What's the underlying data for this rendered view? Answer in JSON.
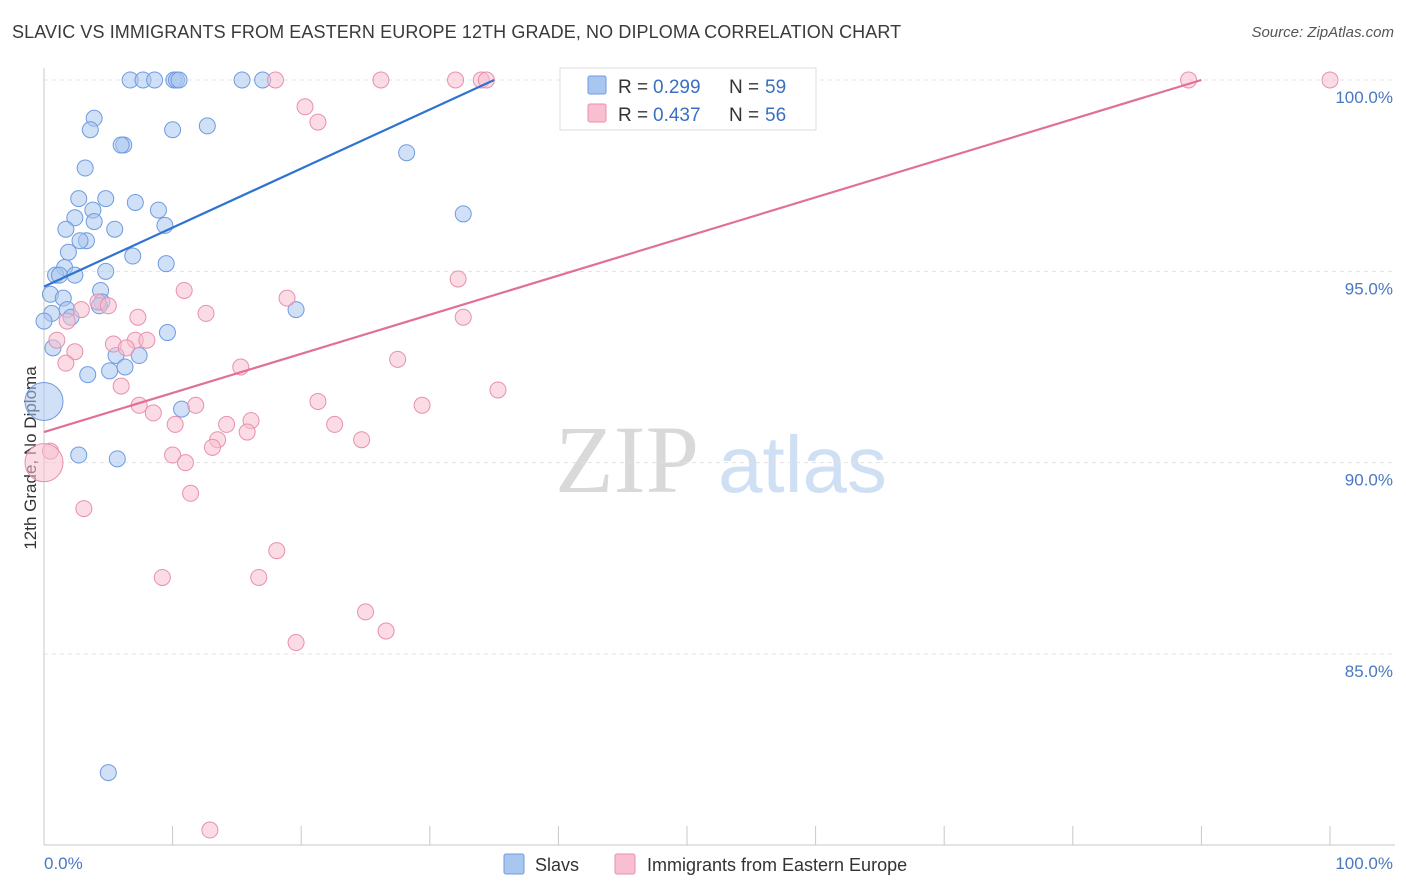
{
  "header": {
    "title": "SLAVIC VS IMMIGRANTS FROM EASTERN EUROPE 12TH GRADE, NO DIPLOMA CORRELATION CHART",
    "source": "Source: ZipAtlas.com"
  },
  "watermark": {
    "zip": "ZIP",
    "atlas": "atlas"
  },
  "legend": {
    "r_label": "R =",
    "n_label": "N =",
    "rows": [
      {
        "name": "Slavs",
        "r": "0.299",
        "n": "59",
        "fill": "#a9c6ef",
        "stroke": "#6f9be0"
      },
      {
        "name": "Immigrants from Eastern Europe",
        "r": "0.437",
        "n": "56",
        "fill": "#f7bfd0",
        "stroke": "#e98fae"
      }
    ]
  },
  "chart_data": {
    "type": "scatter",
    "title": "SLAVIC VS IMMIGRANTS FROM EASTERN EUROPE 12TH GRADE, NO DIPLOMA CORRELATION CHART",
    "xlabel": "",
    "ylabel": "12th Grade, No Diploma",
    "xlim": [
      0,
      100
    ],
    "ylim": [
      80.2,
      100.4
    ],
    "x_tick_labels": [
      {
        "value": 0,
        "label": "0.0%"
      },
      {
        "value": 100,
        "label": "100.0%"
      }
    ],
    "y_tick_labels": [
      {
        "value": 100,
        "label": "100.0%"
      },
      {
        "value": 95,
        "label": "95.0%"
      },
      {
        "value": 90,
        "label": "90.0%"
      },
      {
        "value": 85,
        "label": "85.0%"
      }
    ],
    "y_gridlines": [
      100,
      95,
      90,
      85
    ],
    "series": [
      {
        "name": "Slavs",
        "color": "#6f9be0",
        "fill": "#a9c6ef",
        "trend": {
          "x": [
            0,
            35
          ],
          "y": [
            94.6,
            100.0
          ]
        },
        "points": [
          [
            6.7,
            100
          ],
          [
            7.7,
            100
          ],
          [
            8.6,
            100
          ],
          [
            10.1,
            100
          ],
          [
            10.3,
            100
          ],
          [
            10.5,
            100
          ],
          [
            15.4,
            100
          ],
          [
            17.0,
            100
          ],
          [
            3.9,
            99.0
          ],
          [
            3.6,
            98.7
          ],
          [
            10.0,
            98.7
          ],
          [
            12.7,
            98.8
          ],
          [
            6.2,
            98.3
          ],
          [
            6.0,
            98.3
          ],
          [
            28.2,
            98.1
          ],
          [
            3.2,
            97.7
          ],
          [
            2.7,
            96.9
          ],
          [
            4.8,
            96.9
          ],
          [
            7.1,
            96.8
          ],
          [
            3.8,
            96.6
          ],
          [
            8.9,
            96.6
          ],
          [
            2.4,
            96.4
          ],
          [
            3.9,
            96.3
          ],
          [
            1.7,
            96.1
          ],
          [
            5.5,
            96.1
          ],
          [
            9.4,
            96.2
          ],
          [
            32.6,
            96.5
          ],
          [
            3.3,
            95.8
          ],
          [
            2.8,
            95.8
          ],
          [
            1.9,
            95.5
          ],
          [
            6.9,
            95.4
          ],
          [
            9.5,
            95.2
          ],
          [
            1.6,
            95.1
          ],
          [
            0.9,
            94.9
          ],
          [
            1.2,
            94.9
          ],
          [
            2.4,
            94.9
          ],
          [
            4.8,
            95.0
          ],
          [
            0.5,
            94.4
          ],
          [
            1.5,
            94.3
          ],
          [
            4.4,
            94.5
          ],
          [
            4.5,
            94.2
          ],
          [
            4.3,
            94.1
          ],
          [
            1.8,
            94.0
          ],
          [
            0.6,
            93.9
          ],
          [
            2.1,
            93.8
          ],
          [
            0.0,
            93.7
          ],
          [
            19.6,
            94.0
          ],
          [
            9.6,
            93.4
          ],
          [
            0.7,
            93.0
          ],
          [
            5.6,
            92.8
          ],
          [
            7.4,
            92.8
          ],
          [
            6.3,
            92.5
          ],
          [
            5.1,
            92.4
          ],
          [
            3.4,
            92.3
          ],
          [
            10.7,
            91.4
          ],
          [
            0.0,
            91.6
          ],
          [
            2.7,
            90.2
          ],
          [
            5.7,
            90.1
          ],
          [
            5.0,
            81.9
          ]
        ],
        "big_point_index": 55
      },
      {
        "name": "Immigrants from Eastern Europe",
        "color": "#e98fae",
        "fill": "#f7bfd0",
        "trend": {
          "x": [
            0,
            90
          ],
          "y": [
            90.8,
            100.0
          ]
        },
        "points": [
          [
            18.0,
            100
          ],
          [
            26.2,
            100
          ],
          [
            32.0,
            100
          ],
          [
            34.0,
            100
          ],
          [
            34.4,
            100
          ],
          [
            89.0,
            100
          ],
          [
            100,
            100
          ],
          [
            20.3,
            99.3
          ],
          [
            21.3,
            98.9
          ],
          [
            32.2,
            94.8
          ],
          [
            10.9,
            94.5
          ],
          [
            18.9,
            94.3
          ],
          [
            4.2,
            94.2
          ],
          [
            5.0,
            94.1
          ],
          [
            2.9,
            94.0
          ],
          [
            12.6,
            93.9
          ],
          [
            1.8,
            93.7
          ],
          [
            7.3,
            93.8
          ],
          [
            32.6,
            93.8
          ],
          [
            7.1,
            93.2
          ],
          [
            8.0,
            93.2
          ],
          [
            1.0,
            93.2
          ],
          [
            5.4,
            93.1
          ],
          [
            6.4,
            93.0
          ],
          [
            2.4,
            92.9
          ],
          [
            1.7,
            92.6
          ],
          [
            27.5,
            92.7
          ],
          [
            15.3,
            92.5
          ],
          [
            6.0,
            92.0
          ],
          [
            35.3,
            91.9
          ],
          [
            7.4,
            91.5
          ],
          [
            11.8,
            91.5
          ],
          [
            21.3,
            91.6
          ],
          [
            29.4,
            91.5
          ],
          [
            8.5,
            91.3
          ],
          [
            10.2,
            91.0
          ],
          [
            14.2,
            91.0
          ],
          [
            16.1,
            91.1
          ],
          [
            22.6,
            91.0
          ],
          [
            15.8,
            90.8
          ],
          [
            13.5,
            90.6
          ],
          [
            24.7,
            90.6
          ],
          [
            13.1,
            90.4
          ],
          [
            10.0,
            90.2
          ],
          [
            0.5,
            90.3
          ],
          [
            11.0,
            90.0
          ],
          [
            0.0,
            90.0
          ],
          [
            11.4,
            89.2
          ],
          [
            3.1,
            88.8
          ],
          [
            18.1,
            87.7
          ],
          [
            9.2,
            87.0
          ],
          [
            16.7,
            87.0
          ],
          [
            25.0,
            86.1
          ],
          [
            26.6,
            85.6
          ],
          [
            19.6,
            85.3
          ],
          [
            12.9,
            80.4
          ]
        ],
        "big_point_index": 46
      }
    ]
  }
}
